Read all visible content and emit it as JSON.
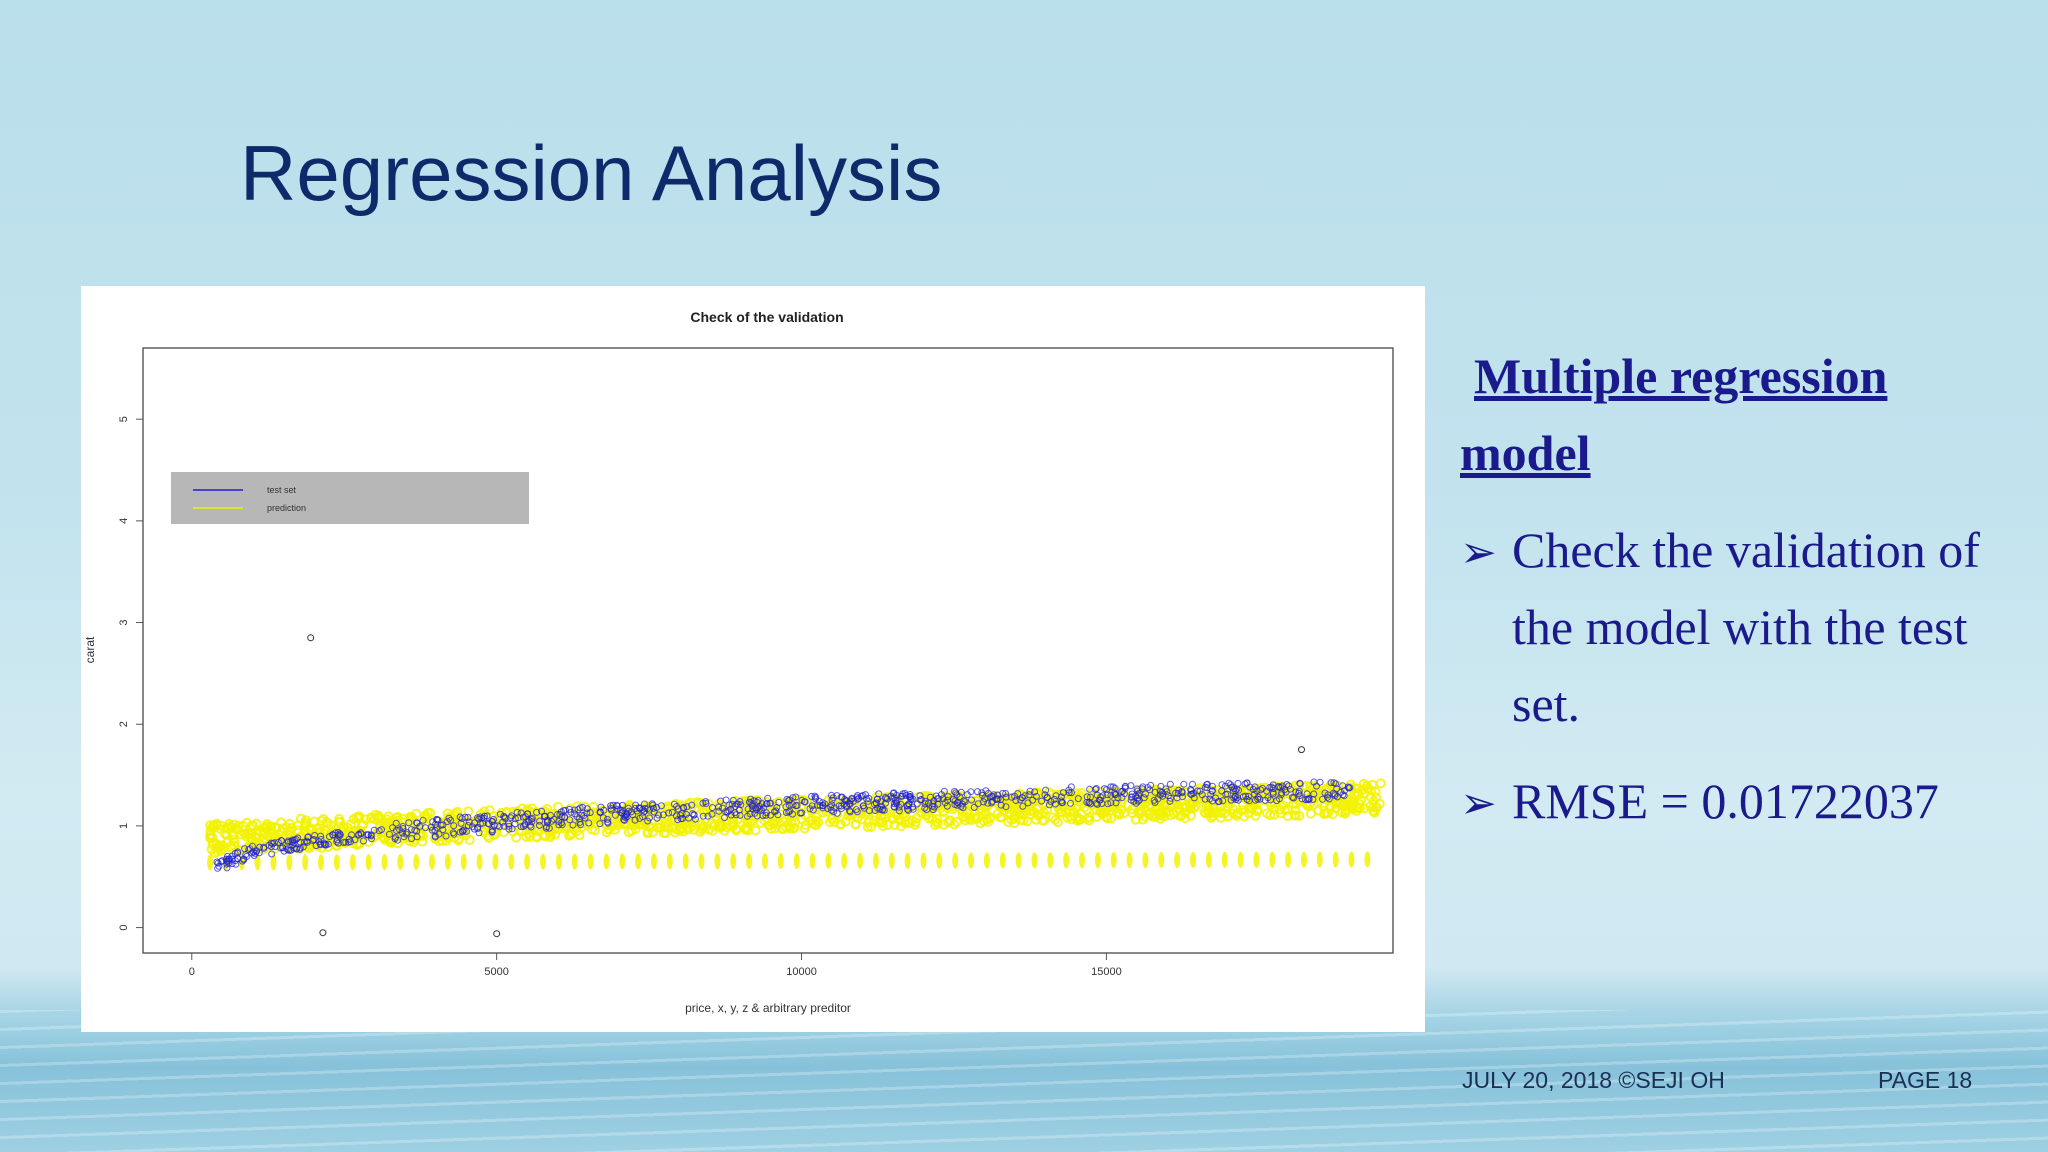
{
  "slide": {
    "title": "Regression Analysis",
    "footer_date": "JULY 20, 2018 ©SEJI OH",
    "footer_page": "PAGE 18"
  },
  "sidebar": {
    "heading": "Multiple regression model",
    "bullets": [
      {
        "icon": "arrowhead-bullet-icon",
        "text": "Check the validation of the model with the test set."
      },
      {
        "icon": "arrowhead-bullet-icon",
        "text": "RMSE = 0.01722037"
      }
    ]
  },
  "colors": {
    "title": "#0f2a6b",
    "sidebar_text": "#1a1a8c",
    "test_set": "#1f1fd6",
    "prediction": "#f2f200",
    "legend_bg": "#b7b7b7"
  },
  "chart_data": {
    "type": "scatter",
    "title": "Check of the validation",
    "xlabel": "price, x, y, z & arbitrary preditor",
    "ylabel": "carat",
    "xlim": [
      -800,
      19700
    ],
    "ylim": [
      -0.25,
      5.7
    ],
    "xticks": [
      0,
      5000,
      10000,
      15000
    ],
    "yticks": [
      0,
      1,
      2,
      3,
      4,
      5
    ],
    "legend": {
      "placement": "top-left",
      "entries": [
        {
          "name": "test set",
          "color": "#1f1fd6"
        },
        {
          "name": "prediction",
          "color": "#f2f200"
        }
      ]
    },
    "series": [
      {
        "name": "test set",
        "color": "#1f1fd6",
        "trend": [
          {
            "x": 400,
            "y": 0.6
          },
          {
            "x": 1000,
            "y": 0.75
          },
          {
            "x": 2000,
            "y": 0.85
          },
          {
            "x": 4000,
            "y": 0.98
          },
          {
            "x": 7000,
            "y": 1.12
          },
          {
            "x": 10000,
            "y": 1.2
          },
          {
            "x": 13000,
            "y": 1.27
          },
          {
            "x": 16000,
            "y": 1.32
          },
          {
            "x": 19000,
            "y": 1.35
          }
        ],
        "outliers": [
          {
            "x": 1950,
            "y": 2.85
          },
          {
            "x": 2150,
            "y": -0.05
          },
          {
            "x": 5000,
            "y": -0.06
          },
          {
            "x": 18200,
            "y": 1.75
          }
        ]
      },
      {
        "name": "prediction",
        "color": "#f2f200",
        "trend": [
          {
            "x": 300,
            "y": 0.88
          },
          {
            "x": 5000,
            "y": 1.02
          },
          {
            "x": 10000,
            "y": 1.12
          },
          {
            "x": 15000,
            "y": 1.2
          },
          {
            "x": 19500,
            "y": 1.27
          }
        ],
        "low_band": [
          {
            "x": 300,
            "y": 0.64
          },
          {
            "x": 19500,
            "y": 0.67
          }
        ]
      }
    ]
  }
}
